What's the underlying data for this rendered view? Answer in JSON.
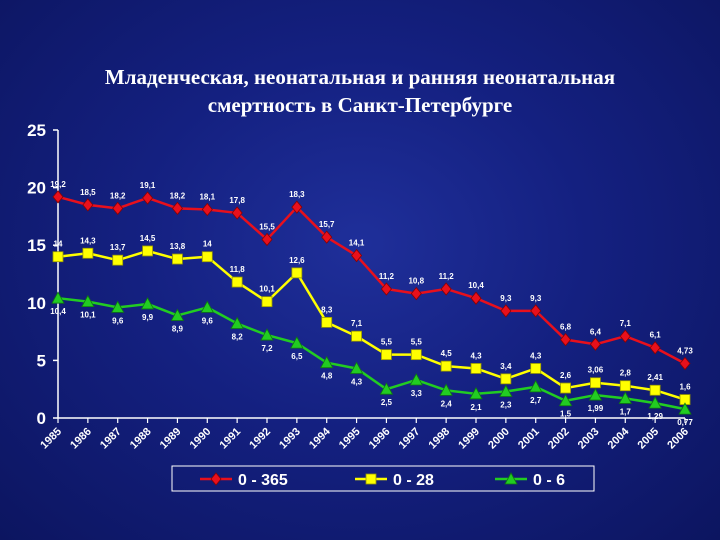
{
  "chart_data": {
    "type": "line",
    "title_line1": "Младенческая, неонатальная и ранняя неонатальная",
    "title_line2": "смертность в Санкт-Петербурге",
    "xlabel": "",
    "ylabel": "",
    "ylim": [
      0,
      25
    ],
    "yticks": [
      "0",
      "5",
      "10",
      "15",
      "20",
      "25"
    ],
    "grid": false,
    "legend_position": "bottom",
    "x": [
      "1985",
      "1986",
      "1987",
      "1988",
      "1989",
      "1990",
      "1991",
      "1992",
      "1993",
      "1994",
      "1995",
      "1996",
      "1997",
      "1998",
      "1999",
      "2000",
      "2001",
      "2002",
      "2003",
      "2004",
      "2005",
      "2006"
    ],
    "series": [
      {
        "name": "0 - 365",
        "color": "#e8101c",
        "marker": "diamond",
        "values": [
          19.2,
          18.5,
          18.2,
          19.1,
          18.2,
          18.1,
          17.8,
          15.5,
          18.3,
          15.7,
          14.1,
          11.2,
          10.8,
          11.2,
          10.4,
          9.3,
          9.3,
          6.8,
          6.4,
          7.1,
          6.1,
          4.73
        ],
        "labels": [
          "19,2",
          "18,5",
          "18,2",
          "19,1",
          "18,2",
          "18,1",
          "17,8",
          "15,5",
          "18,3",
          "15,7",
          "14,1",
          "11,2",
          "10,8",
          "11,2",
          "10,4",
          "9,3",
          "9,3",
          "6,8",
          "6,4",
          "7,1",
          "6,1",
          "4,73"
        ]
      },
      {
        "name": "0 - 28",
        "color": "#ffff00",
        "marker": "square",
        "values": [
          14,
          14.3,
          13.7,
          14.5,
          13.8,
          14,
          11.8,
          10.1,
          12.6,
          8.3,
          7.1,
          5.5,
          5.5,
          4.5,
          4.3,
          3.4,
          4.3,
          2.6,
          3.06,
          2.8,
          2.41,
          1.6
        ],
        "labels": [
          "14",
          "14,3",
          "13,7",
          "14,5",
          "13,8",
          "14",
          "11,8",
          "10,1",
          "12,6",
          "8,3",
          "7,1",
          "5,5",
          "5,5",
          "4,5",
          "4,3",
          "3,4",
          "4,3",
          "2,6",
          "3,06",
          "2,8",
          "2,41",
          "1,6"
        ]
      },
      {
        "name": "0 - 6",
        "color": "#22cc22",
        "marker": "triangle",
        "values": [
          10.4,
          10.1,
          9.6,
          9.9,
          8.9,
          9.6,
          8.2,
          7.2,
          6.5,
          4.8,
          4.3,
          2.5,
          3.3,
          2.4,
          2.1,
          2.3,
          2.7,
          1.5,
          1.99,
          1.7,
          1.29,
          0.77
        ],
        "labels": [
          "10,4",
          "10,1",
          "9,6",
          "9,9",
          "8,9",
          "9,6",
          "8,2",
          "7,2",
          "6,5",
          "4,8",
          "4,3",
          "2,5",
          "3,3",
          "2,4",
          "2,1",
          "2,3",
          "2,7",
          "1,5",
          "1,99",
          "1,7",
          "1,29",
          "0,77"
        ]
      }
    ]
  }
}
